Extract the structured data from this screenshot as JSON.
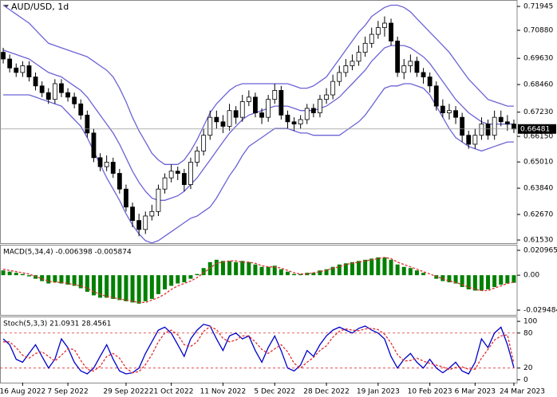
{
  "chart_data": [
    {
      "type": "candlestick",
      "title": "AUD/USD, 1d",
      "open": [
        0.699,
        0.696,
        0.692,
        0.69,
        0.693,
        0.688,
        0.684,
        0.681,
        0.678,
        0.685,
        0.681,
        0.679,
        0.676,
        0.671,
        0.663,
        0.652,
        0.648,
        0.65,
        0.645,
        0.638,
        0.63,
        0.624,
        0.62,
        0.626,
        0.628,
        0.638,
        0.643,
        0.646,
        0.645,
        0.64,
        0.65,
        0.655,
        0.662,
        0.67,
        0.668,
        0.666,
        0.673,
        0.67,
        0.677,
        0.679,
        0.672,
        0.67,
        0.678,
        0.682,
        0.671,
        0.668,
        0.667,
        0.669,
        0.674,
        0.672,
        0.678,
        0.68,
        0.686,
        0.69,
        0.693,
        0.695,
        0.699,
        0.703,
        0.707,
        0.71,
        0.712,
        0.704,
        0.69,
        0.693,
        0.695,
        0.69,
        0.688,
        0.684,
        0.675,
        0.672,
        0.673,
        0.67,
        0.662,
        0.658,
        0.662,
        0.667,
        0.662,
        0.67,
        0.668,
        0.667
      ],
      "high": [
        0.701,
        0.698,
        0.694,
        0.695,
        0.695,
        0.69,
        0.686,
        0.683,
        0.687,
        0.687,
        0.683,
        0.681,
        0.678,
        0.673,
        0.665,
        0.654,
        0.653,
        0.652,
        0.647,
        0.64,
        0.632,
        0.627,
        0.628,
        0.631,
        0.64,
        0.645,
        0.649,
        0.648,
        0.647,
        0.652,
        0.657,
        0.665,
        0.673,
        0.673,
        0.671,
        0.676,
        0.675,
        0.68,
        0.682,
        0.681,
        0.674,
        0.68,
        0.685,
        0.684,
        0.673,
        0.67,
        0.671,
        0.676,
        0.676,
        0.68,
        0.683,
        0.689,
        0.693,
        0.696,
        0.698,
        0.702,
        0.706,
        0.71,
        0.713,
        0.715,
        0.714,
        0.706,
        0.696,
        0.698,
        0.697,
        0.692,
        0.69,
        0.686,
        0.678,
        0.676,
        0.675,
        0.672,
        0.664,
        0.665,
        0.67,
        0.669,
        0.673,
        0.673,
        0.671,
        0.669
      ],
      "low": [
        0.694,
        0.69,
        0.688,
        0.688,
        0.686,
        0.682,
        0.679,
        0.676,
        0.676,
        0.679,
        0.677,
        0.674,
        0.669,
        0.661,
        0.65,
        0.646,
        0.646,
        0.643,
        0.636,
        0.628,
        0.621,
        0.617,
        0.618,
        0.624,
        0.626,
        0.636,
        0.641,
        0.642,
        0.637,
        0.638,
        0.648,
        0.653,
        0.66,
        0.665,
        0.663,
        0.664,
        0.667,
        0.668,
        0.675,
        0.67,
        0.667,
        0.668,
        0.676,
        0.669,
        0.665,
        0.664,
        0.665,
        0.667,
        0.67,
        0.67,
        0.676,
        0.678,
        0.684,
        0.688,
        0.691,
        0.693,
        0.697,
        0.701,
        0.705,
        0.706,
        0.702,
        0.688,
        0.687,
        0.69,
        0.688,
        0.685,
        0.681,
        0.673,
        0.67,
        0.669,
        0.667,
        0.659,
        0.656,
        0.656,
        0.66,
        0.66,
        0.66,
        0.666,
        0.664,
        0.663
      ],
      "close": [
        0.696,
        0.692,
        0.69,
        0.693,
        0.688,
        0.684,
        0.681,
        0.678,
        0.685,
        0.681,
        0.679,
        0.676,
        0.671,
        0.663,
        0.652,
        0.648,
        0.65,
        0.645,
        0.638,
        0.63,
        0.624,
        0.62,
        0.626,
        0.628,
        0.638,
        0.643,
        0.646,
        0.645,
        0.64,
        0.65,
        0.655,
        0.662,
        0.67,
        0.668,
        0.666,
        0.673,
        0.67,
        0.677,
        0.679,
        0.672,
        0.67,
        0.678,
        0.682,
        0.671,
        0.668,
        0.667,
        0.669,
        0.674,
        0.672,
        0.678,
        0.68,
        0.686,
        0.69,
        0.693,
        0.695,
        0.699,
        0.703,
        0.707,
        0.71,
        0.712,
        0.704,
        0.69,
        0.693,
        0.695,
        0.69,
        0.688,
        0.684,
        0.675,
        0.672,
        0.673,
        0.67,
        0.662,
        0.658,
        0.662,
        0.667,
        0.662,
        0.67,
        0.668,
        0.667,
        0.6648
      ],
      "up_color": "#ffffff",
      "down_color": "#000000",
      "bollinger": {
        "color": "#6b63d6",
        "upper": [
          0.72,
          0.718,
          0.716,
          0.714,
          0.712,
          0.709,
          0.706,
          0.703,
          0.702,
          0.701,
          0.7,
          0.699,
          0.698,
          0.697,
          0.695,
          0.693,
          0.691,
          0.688,
          0.683,
          0.677,
          0.67,
          0.664,
          0.659,
          0.654,
          0.651,
          0.649,
          0.649,
          0.649,
          0.651,
          0.655,
          0.66,
          0.666,
          0.672,
          0.676,
          0.679,
          0.682,
          0.684,
          0.685,
          0.685,
          0.685,
          0.685,
          0.685,
          0.685,
          0.685,
          0.685,
          0.684,
          0.683,
          0.683,
          0.684,
          0.686,
          0.688,
          0.692,
          0.696,
          0.7,
          0.704,
          0.708,
          0.711,
          0.715,
          0.717,
          0.719,
          0.72,
          0.72,
          0.719,
          0.717,
          0.714,
          0.711,
          0.708,
          0.705,
          0.702,
          0.699,
          0.695,
          0.691,
          0.687,
          0.684,
          0.681,
          0.678,
          0.677,
          0.676,
          0.675,
          0.675
        ],
        "middle": [
          0.7,
          0.699,
          0.698,
          0.697,
          0.696,
          0.694,
          0.692,
          0.69,
          0.689,
          0.688,
          0.686,
          0.684,
          0.682,
          0.679,
          0.675,
          0.671,
          0.667,
          0.663,
          0.658,
          0.652,
          0.646,
          0.641,
          0.637,
          0.634,
          0.633,
          0.633,
          0.634,
          0.635,
          0.637,
          0.64,
          0.643,
          0.647,
          0.651,
          0.655,
          0.659,
          0.663,
          0.666,
          0.669,
          0.671,
          0.672,
          0.673,
          0.674,
          0.675,
          0.675,
          0.675,
          0.674,
          0.673,
          0.673,
          0.673,
          0.674,
          0.675,
          0.677,
          0.679,
          0.682,
          0.685,
          0.688,
          0.691,
          0.695,
          0.698,
          0.701,
          0.702,
          0.702,
          0.702,
          0.701,
          0.699,
          0.697,
          0.694,
          0.69,
          0.686,
          0.682,
          0.678,
          0.675,
          0.672,
          0.67,
          0.668,
          0.667,
          0.667,
          0.667,
          0.667,
          0.667
        ],
        "lower": [
          0.68,
          0.68,
          0.68,
          0.68,
          0.68,
          0.679,
          0.678,
          0.677,
          0.676,
          0.675,
          0.672,
          0.669,
          0.666,
          0.661,
          0.655,
          0.649,
          0.643,
          0.638,
          0.633,
          0.627,
          0.622,
          0.618,
          0.615,
          0.614,
          0.615,
          0.617,
          0.619,
          0.621,
          0.623,
          0.625,
          0.626,
          0.628,
          0.63,
          0.634,
          0.639,
          0.644,
          0.648,
          0.653,
          0.657,
          0.659,
          0.661,
          0.663,
          0.665,
          0.665,
          0.665,
          0.664,
          0.663,
          0.663,
          0.662,
          0.662,
          0.662,
          0.662,
          0.662,
          0.664,
          0.666,
          0.668,
          0.671,
          0.675,
          0.679,
          0.683,
          0.684,
          0.684,
          0.685,
          0.685,
          0.684,
          0.683,
          0.68,
          0.675,
          0.67,
          0.665,
          0.661,
          0.659,
          0.657,
          0.656,
          0.655,
          0.656,
          0.657,
          0.658,
          0.659,
          0.659
        ]
      },
      "last_price": 0.66481,
      "ylim": [
        0.6139,
        0.7216
      ],
      "yticks": [
        {
          "value": 0.71945,
          "label": "0.71945"
        },
        {
          "value": 0.7088,
          "label": "0.70880"
        },
        {
          "value": 0.6963,
          "label": "0.69630"
        },
        {
          "value": 0.6846,
          "label": "0.68460"
        },
        {
          "value": 0.6723,
          "label": "0.67230"
        },
        {
          "value": 0.6615,
          "label": "0.66150"
        },
        {
          "value": 0.6501,
          "label": "0.65010"
        },
        {
          "value": 0.6384,
          "label": "0.63840"
        },
        {
          "value": 0.6267,
          "label": "0.62670"
        },
        {
          "value": 0.6153,
          "label": "0.61530"
        }
      ]
    },
    {
      "type": "macd",
      "title": "MACD(5,34,4) -0.006398 -0.005874",
      "color": "#008000",
      "signal_color": "#e03030",
      "values": [
        0.004,
        0.003,
        0.002,
        0.001,
        -0.001,
        -0.003,
        -0.005,
        -0.007,
        -0.006,
        -0.007,
        -0.008,
        -0.009,
        -0.011,
        -0.014,
        -0.017,
        -0.019,
        -0.019,
        -0.02,
        -0.021,
        -0.022,
        -0.023,
        -0.024,
        -0.022,
        -0.02,
        -0.016,
        -0.012,
        -0.009,
        -0.007,
        -0.006,
        -0.003,
        0.001,
        0.006,
        0.011,
        0.013,
        0.012,
        0.012,
        0.011,
        0.012,
        0.011,
        0.009,
        0.007,
        0.007,
        0.008,
        0.005,
        0.003,
        0.001,
        0.001,
        0.002,
        0.002,
        0.004,
        0.005,
        0.007,
        0.009,
        0.01,
        0.011,
        0.012,
        0.013,
        0.014,
        0.015,
        0.015,
        0.013,
        0.009,
        0.007,
        0.006,
        0.004,
        0.002,
        0.0,
        -0.003,
        -0.005,
        -0.006,
        -0.007,
        -0.01,
        -0.012,
        -0.013,
        -0.013,
        -0.012,
        -0.01,
        -0.008,
        -0.007,
        -0.006398
      ],
      "signal": [
        0.005,
        0.004,
        0.003,
        0.002,
        0.001,
        -0.001,
        -0.003,
        -0.005,
        -0.006,
        -0.006,
        -0.007,
        -0.008,
        -0.009,
        -0.011,
        -0.014,
        -0.016,
        -0.018,
        -0.019,
        -0.02,
        -0.021,
        -0.022,
        -0.023,
        -0.023,
        -0.021,
        -0.019,
        -0.016,
        -0.012,
        -0.009,
        -0.007,
        -0.005,
        -0.002,
        0.002,
        0.006,
        0.01,
        0.011,
        0.012,
        0.012,
        0.011,
        0.011,
        0.01,
        0.008,
        0.007,
        0.007,
        0.006,
        0.004,
        0.002,
        0.001,
        0.001,
        0.002,
        0.003,
        0.004,
        0.006,
        0.007,
        0.009,
        0.01,
        0.011,
        0.012,
        0.013,
        0.014,
        0.015,
        0.014,
        0.011,
        0.009,
        0.007,
        0.005,
        0.003,
        0.001,
        -0.001,
        -0.003,
        -0.005,
        -0.006,
        -0.008,
        -0.01,
        -0.012,
        -0.013,
        -0.013,
        -0.011,
        -0.009,
        -0.007,
        -0.005874
      ],
      "ylim": [
        -0.0335,
        0.025
      ],
      "yticks": [
        {
          "value": 0.020965,
          "label": "0.020965"
        },
        {
          "value": 0,
          "label": "0.00"
        },
        {
          "value": -0.029484,
          "label": "-0.029484"
        }
      ]
    },
    {
      "type": "stochastic",
      "title": "Stoch(5,3,3) 21.0931 28.4561",
      "categories": [
        null,
        null,
        null,
        "16 Aug 2022",
        null,
        null,
        null,
        null,
        null,
        null,
        "7 Sep 2022",
        null,
        null,
        null,
        null,
        null,
        null,
        null,
        null,
        "29 Sep 2022",
        null,
        null,
        null,
        null,
        null,
        null,
        "21 Oct 2022",
        null,
        null,
        null,
        null,
        null,
        null,
        null,
        "11 Nov 2022",
        null,
        null,
        null,
        null,
        null,
        null,
        null,
        "5 Dec 2022",
        null,
        null,
        null,
        null,
        null,
        null,
        null,
        "28 Dec 2022",
        null,
        null,
        null,
        null,
        null,
        null,
        null,
        "19 Jan 2023",
        null,
        null,
        null,
        null,
        null,
        null,
        null,
        "10 Feb 2023",
        null,
        null,
        null,
        null,
        null,
        null,
        "6 Mar 2023",
        null,
        null,
        null,
        null,
        null,
        "24 Mar 2023"
      ],
      "series": [
        {
          "color": "#0000cc",
          "style": "solid",
          "values": [
            70,
            60,
            35,
            30,
            45,
            60,
            40,
            20,
            35,
            70,
            55,
            30,
            15,
            10,
            20,
            40,
            60,
            35,
            15,
            10,
            12,
            20,
            45,
            65,
            85,
            90,
            80,
            60,
            40,
            70,
            85,
            95,
            92,
            70,
            50,
            75,
            80,
            70,
            75,
            50,
            30,
            55,
            75,
            50,
            20,
            15,
            25,
            50,
            40,
            60,
            75,
            85,
            90,
            85,
            80,
            88,
            92,
            85,
            80,
            70,
            40,
            20,
            35,
            45,
            30,
            20,
            35,
            20,
            12,
            20,
            30,
            15,
            10,
            30,
            70,
            55,
            80,
            90,
            60,
            21.0931
          ]
        },
        {
          "color": "#e03030",
          "style": "dashed",
          "values": [
            65,
            65,
            55,
            42,
            37,
            45,
            48,
            40,
            32,
            42,
            53,
            52,
            33,
            18,
            15,
            23,
            40,
            45,
            37,
            20,
            12,
            14,
            26,
            43,
            65,
            80,
            85,
            77,
            60,
            57,
            65,
            83,
            91,
            86,
            71,
            65,
            68,
            75,
            75,
            65,
            52,
            45,
            53,
            60,
            48,
            28,
            20,
            30,
            38,
            50,
            58,
            73,
            83,
            87,
            85,
            84,
            87,
            88,
            86,
            78,
            63,
            43,
            32,
            33,
            37,
            32,
            28,
            25,
            22,
            17,
            21,
            22,
            18,
            18,
            37,
            52,
            68,
            75,
            77,
            28.4561
          ]
        }
      ],
      "levels": [
        20,
        80
      ],
      "level_color": "#e03030",
      "ylim": [
        -5,
        107
      ],
      "yticks": [
        100,
        80,
        20,
        0
      ]
    }
  ]
}
